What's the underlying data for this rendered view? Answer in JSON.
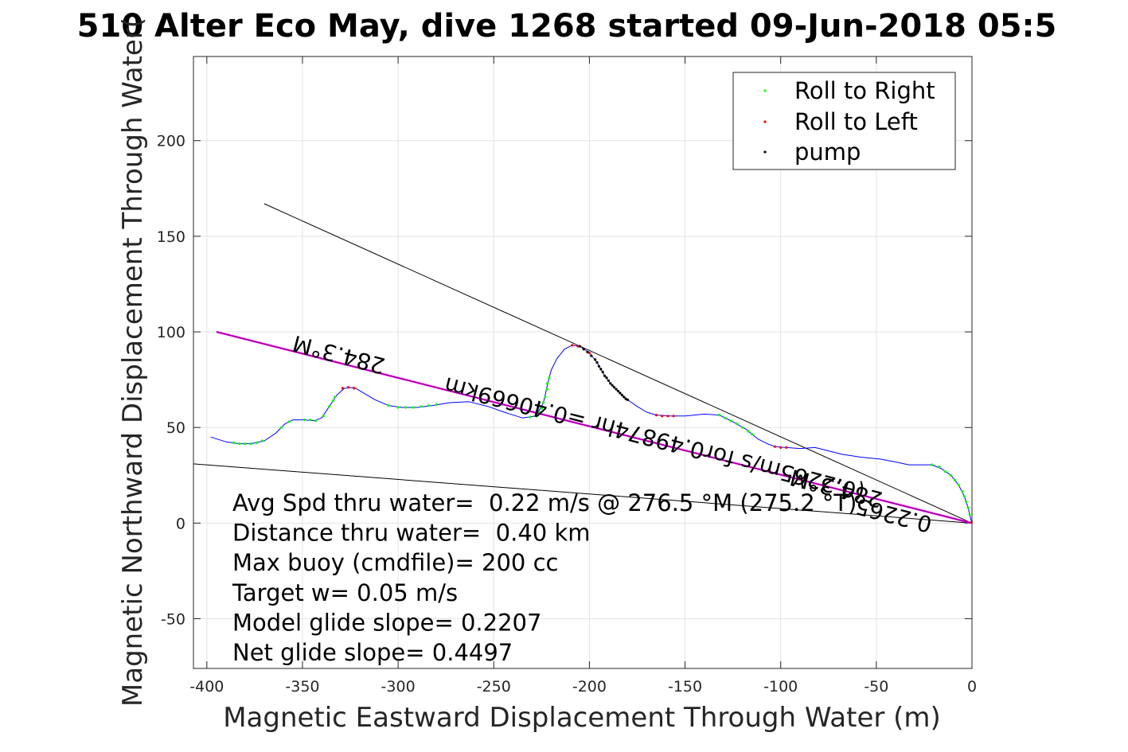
{
  "chart_data": {
    "type": "line",
    "title": "510 Alter Eco May, dive 1268 started 09-Jun-2018 05:5",
    "xlabel": "Magnetic Eastward Displacement Through Water (m)",
    "ylabel": "Magnetic Northward Displacement Through Water(",
    "xlim": [
      -407,
      0
    ],
    "ylim": [
      -76,
      244
    ],
    "xticks": [
      -400,
      -350,
      -300,
      -250,
      -200,
      -150,
      -100,
      -50,
      0
    ],
    "yticks": [
      -50,
      0,
      50,
      100,
      150,
      200
    ],
    "xtick_labels": [
      "-400",
      "-350",
      "-300",
      "-250",
      "-200",
      "-150",
      "-100",
      "-50",
      "0"
    ],
    "ytick_labels": [
      "-50",
      "0",
      "50",
      "100",
      "150",
      "200"
    ],
    "grid": true,
    "legend_position": "top-right",
    "legend": [
      {
        "label": "Roll to Right",
        "color": "#00ff00"
      },
      {
        "label": "Roll to Left",
        "color": "#ff0000"
      },
      {
        "label": "pump",
        "color": "#000000"
      }
    ],
    "track": {
      "color": "#0000ff",
      "points": [
        [
          -398,
          45
        ],
        [
          -390,
          42.5
        ],
        [
          -383,
          41.5
        ],
        [
          -377,
          41.5
        ],
        [
          -370,
          43
        ],
        [
          -364,
          47
        ],
        [
          -359,
          52
        ],
        [
          -355,
          54
        ],
        [
          -349,
          54
        ],
        [
          -344,
          53.5
        ],
        [
          -340,
          55
        ],
        [
          -336,
          61
        ],
        [
          -332,
          67
        ],
        [
          -328,
          70.5
        ],
        [
          -323,
          71
        ],
        [
          -318,
          68
        ],
        [
          -312,
          64.5
        ],
        [
          -305,
          61.5
        ],
        [
          -298,
          60.5
        ],
        [
          -290,
          60.5
        ],
        [
          -282,
          61.5
        ],
        [
          -273,
          63
        ],
        [
          -263,
          63.5
        ],
        [
          -253,
          61
        ],
        [
          -243,
          57.5
        ],
        [
          -235,
          55
        ],
        [
          -228,
          56
        ],
        [
          -224,
          63
        ],
        [
          -222,
          72
        ],
        [
          -220,
          80
        ],
        [
          -217,
          86
        ],
        [
          -213,
          91
        ],
        [
          -209,
          93
        ],
        [
          -205,
          92.5
        ],
        [
          -200,
          89
        ],
        [
          -196,
          84
        ],
        [
          -192,
          77
        ],
        [
          -188,
          72
        ],
        [
          -184,
          68
        ],
        [
          -180,
          64.5
        ],
        [
          -175,
          61
        ],
        [
          -170,
          58
        ],
        [
          -165,
          56.5
        ],
        [
          -158,
          56
        ],
        [
          -150,
          56
        ],
        [
          -140,
          57
        ],
        [
          -132,
          56.5
        ],
        [
          -125,
          53
        ],
        [
          -118,
          49
        ],
        [
          -112,
          44
        ],
        [
          -107,
          41.5
        ],
        [
          -103,
          40
        ],
        [
          -97,
          39.5
        ],
        [
          -90,
          39
        ],
        [
          -82,
          39.5
        ],
        [
          -76,
          38
        ],
        [
          -68,
          36
        ],
        [
          -58,
          34.5
        ],
        [
          -48,
          33.5
        ],
        [
          -40,
          32
        ],
        [
          -33,
          30.5
        ],
        [
          -27,
          30.5
        ],
        [
          -21,
          30.5
        ],
        [
          -16,
          28.5
        ],
        [
          -11,
          25
        ],
        [
          -7,
          20
        ],
        [
          -4,
          14
        ],
        [
          -2,
          8
        ],
        [
          -0.6,
          2
        ],
        [
          0,
          0
        ]
      ],
      "roll_right": [
        [
          -386,
          42
        ],
        [
          -383,
          41.5
        ],
        [
          -380,
          41.5
        ],
        [
          -377,
          41.5
        ],
        [
          -374,
          42
        ],
        [
          -371,
          43
        ],
        [
          -361,
          50
        ],
        [
          -357,
          53
        ],
        [
          -349,
          54
        ],
        [
          -346,
          54
        ],
        [
          -343,
          53.5
        ],
        [
          -339,
          56
        ],
        [
          -336,
          61
        ],
        [
          -334,
          64
        ],
        [
          -333,
          66
        ],
        [
          -305,
          61.5
        ],
        [
          -300,
          60.5
        ],
        [
          -296,
          60.5
        ],
        [
          -292,
          60.5
        ],
        [
          -288,
          61
        ],
        [
          -284,
          61.5
        ],
        [
          -280,
          62
        ],
        [
          -231,
          55.5
        ],
        [
          -228,
          56
        ],
        [
          -226,
          58
        ],
        [
          -225,
          60
        ],
        [
          -224,
          63
        ],
        [
          -223,
          66
        ],
        [
          -222,
          70
        ],
        [
          -222,
          73
        ],
        [
          -221,
          76
        ],
        [
          -132,
          56.5
        ],
        [
          -129,
          55
        ],
        [
          -126,
          53.5
        ],
        [
          -123,
          52
        ],
        [
          -120,
          50
        ],
        [
          -117,
          48
        ],
        [
          -115,
          46.5
        ],
        [
          -21,
          30.5
        ],
        [
          -17,
          29.5
        ],
        [
          -14,
          27
        ],
        [
          -11,
          25
        ],
        [
          -9,
          22.5
        ],
        [
          -7,
          20
        ],
        [
          -5,
          16.5
        ],
        [
          -4,
          14
        ],
        [
          -3,
          11
        ],
        [
          -2,
          8
        ],
        [
          -1.2,
          4.5
        ]
      ],
      "roll_left": [
        [
          -329,
          70.5
        ],
        [
          -326,
          71
        ],
        [
          -323,
          70.5
        ],
        [
          -209,
          93
        ],
        [
          -206,
          92.5
        ],
        [
          -203,
          91
        ],
        [
          -200,
          89
        ],
        [
          -165,
          56.5
        ],
        [
          -162,
          56
        ],
        [
          -159,
          56
        ],
        [
          -156,
          56
        ],
        [
          -103,
          40
        ],
        [
          -100,
          39.5
        ],
        [
          -97,
          39.5
        ],
        [
          -0.3,
          0.5
        ]
      ],
      "pump": [
        [
          -205,
          92.5
        ],
        [
          -203,
          91
        ],
        [
          -201,
          89.5
        ],
        [
          -199,
          87.5
        ],
        [
          -197,
          85.5
        ],
        [
          -196,
          84
        ],
        [
          -195,
          82
        ],
        [
          -194,
          80.5
        ],
        [
          -193,
          79
        ],
        [
          -192,
          77
        ],
        [
          -191,
          76
        ],
        [
          -190,
          74.5
        ],
        [
          -189,
          73
        ],
        [
          -188,
          72
        ],
        [
          -187,
          71
        ],
        [
          -186,
          70
        ],
        [
          -185,
          69
        ],
        [
          -184,
          68
        ],
        [
          -183,
          67
        ],
        [
          -182,
          66
        ],
        [
          -181,
          65
        ],
        [
          -180,
          64.5
        ]
      ]
    },
    "lines": [
      {
        "name": "upper-bound",
        "color": "#000000",
        "points": [
          [
            -370,
            167
          ],
          [
            0,
            0
          ]
        ]
      },
      {
        "name": "lower-bound",
        "color": "#000000",
        "points": [
          [
            -407,
            31
          ],
          [
            0,
            0
          ]
        ]
      },
      {
        "name": "heading-line",
        "color": "#ff00ff",
        "points": [
          [
            -395,
            100
          ],
          [
            0,
            0
          ]
        ]
      },
      {
        "name": "heading-line-core",
        "color": "#000000",
        "points": [
          [
            -395,
            100
          ],
          [
            0,
            0
          ]
        ]
      }
    ],
    "annotations": [
      {
        "text": "284.3°M",
        "x": -330,
        "y": 92,
        "rotation": 194.5
      },
      {
        "text": "(0.2265m/s for0.49874hr =0.40669km",
        "x": -165,
        "y": 48,
        "rotation": 194.5
      },
      {
        "text": "284.3°M",
        "x": -70,
        "y": 22,
        "rotation": 194.5
      },
      {
        "text": "0.2265",
        "x": -40,
        "y": 8,
        "rotation": 194.5
      }
    ],
    "stats": [
      "Avg Spd thru water=  0.22 m/s @ 276.5 °M (275.2 °T)",
      "Distance thru water=  0.40 km",
      "Max buoy (cmdfile)= 200 cc",
      "Target w= 0.05 m/s",
      "Model glide slope= 0.2207",
      "Net glide slope= 0.4497"
    ]
  }
}
